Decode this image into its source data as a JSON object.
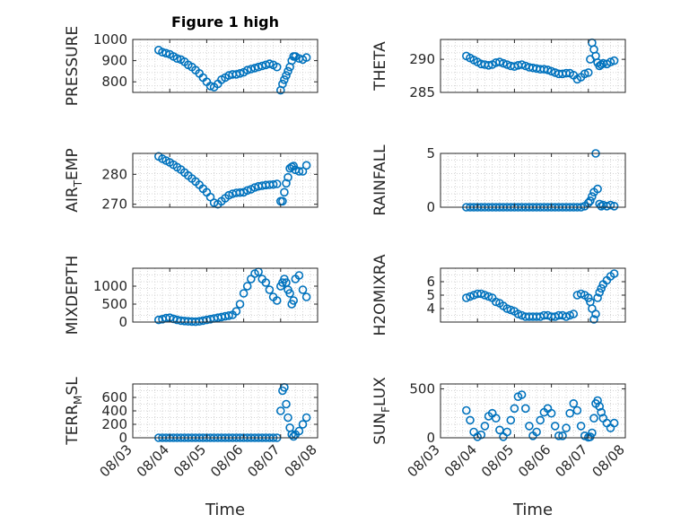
{
  "figure": {
    "title": "Figure 1 high",
    "xlabel": "Time",
    "x_ticklabels": [
      "08/03",
      "08/04",
      "08/05",
      "08/06",
      "08/07",
      "08/08"
    ],
    "marker_color": "#0072BD"
  },
  "chart_data": [
    {
      "type": "scatter",
      "name": "PRESSURE",
      "ylabel": "PRESSURE",
      "title": "Figure 1 high",
      "ylim": [
        750,
        1000
      ],
      "yticks": [
        800,
        900,
        1000
      ],
      "xlim": [
        0,
        5
      ],
      "grid": true,
      "x": [
        0.7,
        0.8,
        0.9,
        1,
        1.1,
        1.2,
        1.3,
        1.4,
        1.5,
        1.6,
        1.7,
        1.8,
        1.9,
        2,
        2.1,
        2.2,
        2.3,
        2.4,
        2.5,
        2.6,
        2.7,
        2.8,
        2.9,
        3,
        3.1,
        3.2,
        3.3,
        3.4,
        3.5,
        3.6,
        3.7,
        3.8,
        3.9,
        4,
        4.05,
        4.1,
        4.15,
        4.2,
        4.25,
        4.3,
        4.35,
        4.4,
        4.5,
        4.6,
        4.7
      ],
      "y": [
        950,
        940,
        935,
        930,
        920,
        910,
        905,
        895,
        880,
        870,
        855,
        840,
        820,
        800,
        780,
        775,
        790,
        810,
        820,
        830,
        835,
        835,
        840,
        845,
        855,
        860,
        865,
        870,
        875,
        880,
        885,
        880,
        870,
        760,
        790,
        810,
        830,
        850,
        870,
        900,
        920,
        920,
        910,
        905,
        915
      ]
    },
    {
      "type": "scatter",
      "name": "THETA",
      "ylabel": "THETA",
      "ylim": [
        285,
        293
      ],
      "yticks": [
        285,
        290
      ],
      "xlim": [
        0,
        5
      ],
      "grid": true,
      "x": [
        0.7,
        0.8,
        0.9,
        1,
        1.1,
        1.2,
        1.3,
        1.4,
        1.5,
        1.6,
        1.7,
        1.8,
        1.9,
        2,
        2.1,
        2.2,
        2.3,
        2.4,
        2.5,
        2.6,
        2.7,
        2.8,
        2.9,
        3,
        3.1,
        3.2,
        3.3,
        3.4,
        3.5,
        3.6,
        3.7,
        3.8,
        3.9,
        4,
        4.05,
        4.1,
        4.15,
        4.2,
        4.25,
        4.3,
        4.35,
        4.4,
        4.5,
        4.6,
        4.7
      ],
      "y": [
        290.5,
        290.2,
        289.9,
        289.6,
        289.3,
        289.2,
        289.1,
        289.2,
        289.5,
        289.6,
        289.4,
        289.2,
        289.0,
        288.9,
        289.1,
        289.2,
        289.0,
        288.8,
        288.7,
        288.6,
        288.5,
        288.5,
        288.4,
        288.2,
        288.0,
        287.8,
        287.8,
        287.9,
        287.9,
        287.6,
        287.0,
        287.3,
        287.8,
        288.0,
        290.0,
        292.5,
        291.5,
        290.5,
        289.5,
        289.0,
        289.2,
        289.4,
        289.3,
        289.6,
        289.8
      ]
    },
    {
      "type": "scatter",
      "name": "AIR_TEMP",
      "ylabel": "AIR_TEMP",
      "ylim": [
        269,
        287
      ],
      "yticks": [
        270,
        280
      ],
      "xlim": [
        0,
        5
      ],
      "grid": true,
      "x": [
        0.7,
        0.8,
        0.9,
        1,
        1.1,
        1.2,
        1.3,
        1.4,
        1.5,
        1.6,
        1.7,
        1.8,
        1.9,
        2,
        2.1,
        2.2,
        2.3,
        2.4,
        2.5,
        2.6,
        2.7,
        2.8,
        2.9,
        3,
        3.1,
        3.2,
        3.3,
        3.4,
        3.5,
        3.6,
        3.7,
        3.8,
        3.9,
        4,
        4.05,
        4.1,
        4.15,
        4.2,
        4.25,
        4.3,
        4.35,
        4.4,
        4.5,
        4.6,
        4.7
      ],
      "y": [
        286,
        285.2,
        284.6,
        284,
        283.2,
        282.4,
        281.6,
        280.6,
        279.6,
        278.6,
        277.6,
        276.5,
        275.2,
        274,
        272.4,
        270.5,
        270,
        271,
        272,
        273,
        273.5,
        273.8,
        273.9,
        274,
        274.6,
        275,
        275.6,
        276,
        276.2,
        276.4,
        276.5,
        276.6,
        276.8,
        271,
        271,
        274,
        277,
        279,
        282,
        282.5,
        282.8,
        281.5,
        281,
        281,
        283
      ]
    },
    {
      "type": "scatter",
      "name": "RAINFALL",
      "ylabel": "RAINFALL",
      "ylim": [
        0,
        5
      ],
      "yticks": [
        0,
        5
      ],
      "xlim": [
        0,
        5
      ],
      "grid": true,
      "x": [
        0.7,
        0.8,
        0.9,
        1,
        1.1,
        1.2,
        1.3,
        1.4,
        1.5,
        1.6,
        1.7,
        1.8,
        1.9,
        2,
        2.1,
        2.2,
        2.3,
        2.4,
        2.5,
        2.6,
        2.7,
        2.8,
        2.9,
        3,
        3.1,
        3.2,
        3.3,
        3.4,
        3.5,
        3.6,
        3.7,
        3.8,
        3.9,
        4,
        4.05,
        4.1,
        4.15,
        4.2,
        4.25,
        4.3,
        4.35,
        4.4,
        4.5,
        4.6,
        4.7
      ],
      "y": [
        0,
        0,
        0,
        0,
        0,
        0,
        0,
        0,
        0,
        0,
        0,
        0,
        0,
        0,
        0,
        0,
        0,
        0,
        0,
        0,
        0,
        0,
        0,
        0,
        0,
        0,
        0,
        0,
        0,
        0,
        0,
        0,
        0.1,
        0.4,
        0.6,
        1.0,
        1.4,
        5.0,
        1.7,
        0.3,
        0.1,
        0.2,
        0.1,
        0.2,
        0.1
      ]
    },
    {
      "type": "scatter",
      "name": "MIXDEPTH",
      "ylabel": "MIXDEPTH",
      "ylim": [
        0,
        1500
      ],
      "yticks": [
        0,
        500,
        1000
      ],
      "xlim": [
        0,
        5
      ],
      "grid": true,
      "x": [
        0.7,
        0.8,
        0.9,
        1,
        1.1,
        1.2,
        1.3,
        1.4,
        1.5,
        1.6,
        1.7,
        1.8,
        1.9,
        2,
        2.1,
        2.2,
        2.3,
        2.4,
        2.5,
        2.6,
        2.7,
        2.8,
        2.9,
        3,
        3.1,
        3.2,
        3.3,
        3.4,
        3.5,
        3.6,
        3.7,
        3.8,
        3.9,
        4,
        4.05,
        4.1,
        4.15,
        4.2,
        4.25,
        4.3,
        4.35,
        4.4,
        4.5,
        4.6,
        4.7
      ],
      "y": [
        60,
        80,
        110,
        120,
        90,
        60,
        40,
        30,
        20,
        15,
        10,
        20,
        40,
        60,
        80,
        100,
        120,
        140,
        160,
        180,
        200,
        300,
        500,
        800,
        1000,
        1200,
        1350,
        1400,
        1200,
        1100,
        900,
        700,
        600,
        1000,
        1100,
        1200,
        1100,
        900,
        800,
        500,
        600,
        1200,
        1300,
        900,
        700
      ]
    },
    {
      "type": "scatter",
      "name": "H2OMIXRA",
      "ylabel": "H2OMIXRA",
      "ylim": [
        3,
        7
      ],
      "yticks": [
        4,
        5,
        6
      ],
      "xlim": [
        0,
        5
      ],
      "grid": true,
      "x": [
        0.7,
        0.8,
        0.9,
        1,
        1.1,
        1.2,
        1.3,
        1.4,
        1.5,
        1.6,
        1.7,
        1.8,
        1.9,
        2,
        2.1,
        2.2,
        2.3,
        2.4,
        2.5,
        2.6,
        2.7,
        2.8,
        2.9,
        3,
        3.1,
        3.2,
        3.3,
        3.4,
        3.5,
        3.6,
        3.7,
        3.8,
        3.9,
        4,
        4.05,
        4.1,
        4.15,
        4.2,
        4.25,
        4.3,
        4.35,
        4.4,
        4.5,
        4.6,
        4.7
      ],
      "y": [
        4.8,
        4.9,
        5.0,
        5.1,
        5.1,
        5.0,
        4.9,
        4.8,
        4.5,
        4.4,
        4.2,
        4.0,
        3.9,
        3.8,
        3.6,
        3.5,
        3.4,
        3.4,
        3.4,
        3.4,
        3.4,
        3.5,
        3.5,
        3.4,
        3.4,
        3.5,
        3.5,
        3.4,
        3.5,
        3.6,
        5.0,
        5.1,
        5.0,
        4.8,
        4.5,
        4.0,
        3.2,
        3.6,
        4.8,
        5.2,
        5.5,
        5.8,
        6.1,
        6.4,
        6.6
      ]
    },
    {
      "type": "scatter",
      "name": "TERR_MSL",
      "ylabel": "TERR_MSL",
      "ylim": [
        0,
        800
      ],
      "yticks": [
        0,
        200,
        400,
        600
      ],
      "xlim": [
        0,
        5
      ],
      "grid": true,
      "x": [
        0.7,
        0.8,
        0.9,
        1,
        1.1,
        1.2,
        1.3,
        1.4,
        1.5,
        1.6,
        1.7,
        1.8,
        1.9,
        2,
        2.1,
        2.2,
        2.3,
        2.4,
        2.5,
        2.6,
        2.7,
        2.8,
        2.9,
        3,
        3.1,
        3.2,
        3.3,
        3.4,
        3.5,
        3.6,
        3.7,
        3.8,
        3.9,
        4,
        4.05,
        4.1,
        4.15,
        4.2,
        4.25,
        4.3,
        4.35,
        4.4,
        4.5,
        4.6,
        4.7
      ],
      "y": [
        0,
        0,
        0,
        0,
        0,
        0,
        0,
        0,
        0,
        0,
        0,
        0,
        0,
        0,
        0,
        0,
        0,
        0,
        0,
        0,
        0,
        0,
        0,
        0,
        0,
        0,
        0,
        0,
        0,
        0,
        0,
        0,
        0,
        400,
        700,
        750,
        500,
        300,
        150,
        50,
        20,
        50,
        100,
        200,
        300
      ]
    },
    {
      "type": "scatter",
      "name": "SUN_FLUX",
      "ylabel": "SUN_FLUX",
      "ylim": [
        0,
        550
      ],
      "yticks": [
        0,
        500
      ],
      "xlim": [
        0,
        5
      ],
      "grid": true,
      "x": [
        0.7,
        0.8,
        0.9,
        1,
        1.1,
        1.2,
        1.3,
        1.4,
        1.5,
        1.6,
        1.7,
        1.8,
        1.9,
        2,
        2.1,
        2.2,
        2.3,
        2.4,
        2.5,
        2.6,
        2.7,
        2.8,
        2.9,
        3,
        3.1,
        3.2,
        3.3,
        3.4,
        3.5,
        3.6,
        3.7,
        3.8,
        3.9,
        4,
        4.05,
        4.1,
        4.15,
        4.2,
        4.25,
        4.3,
        4.35,
        4.4,
        4.5,
        4.6,
        4.7
      ],
      "y": [
        280,
        180,
        60,
        10,
        30,
        120,
        220,
        250,
        200,
        80,
        10,
        60,
        180,
        300,
        420,
        440,
        300,
        120,
        20,
        60,
        180,
        260,
        300,
        250,
        120,
        20,
        20,
        100,
        250,
        350,
        280,
        120,
        20,
        5,
        10,
        50,
        200,
        350,
        380,
        320,
        260,
        200,
        150,
        100,
        150
      ]
    }
  ]
}
